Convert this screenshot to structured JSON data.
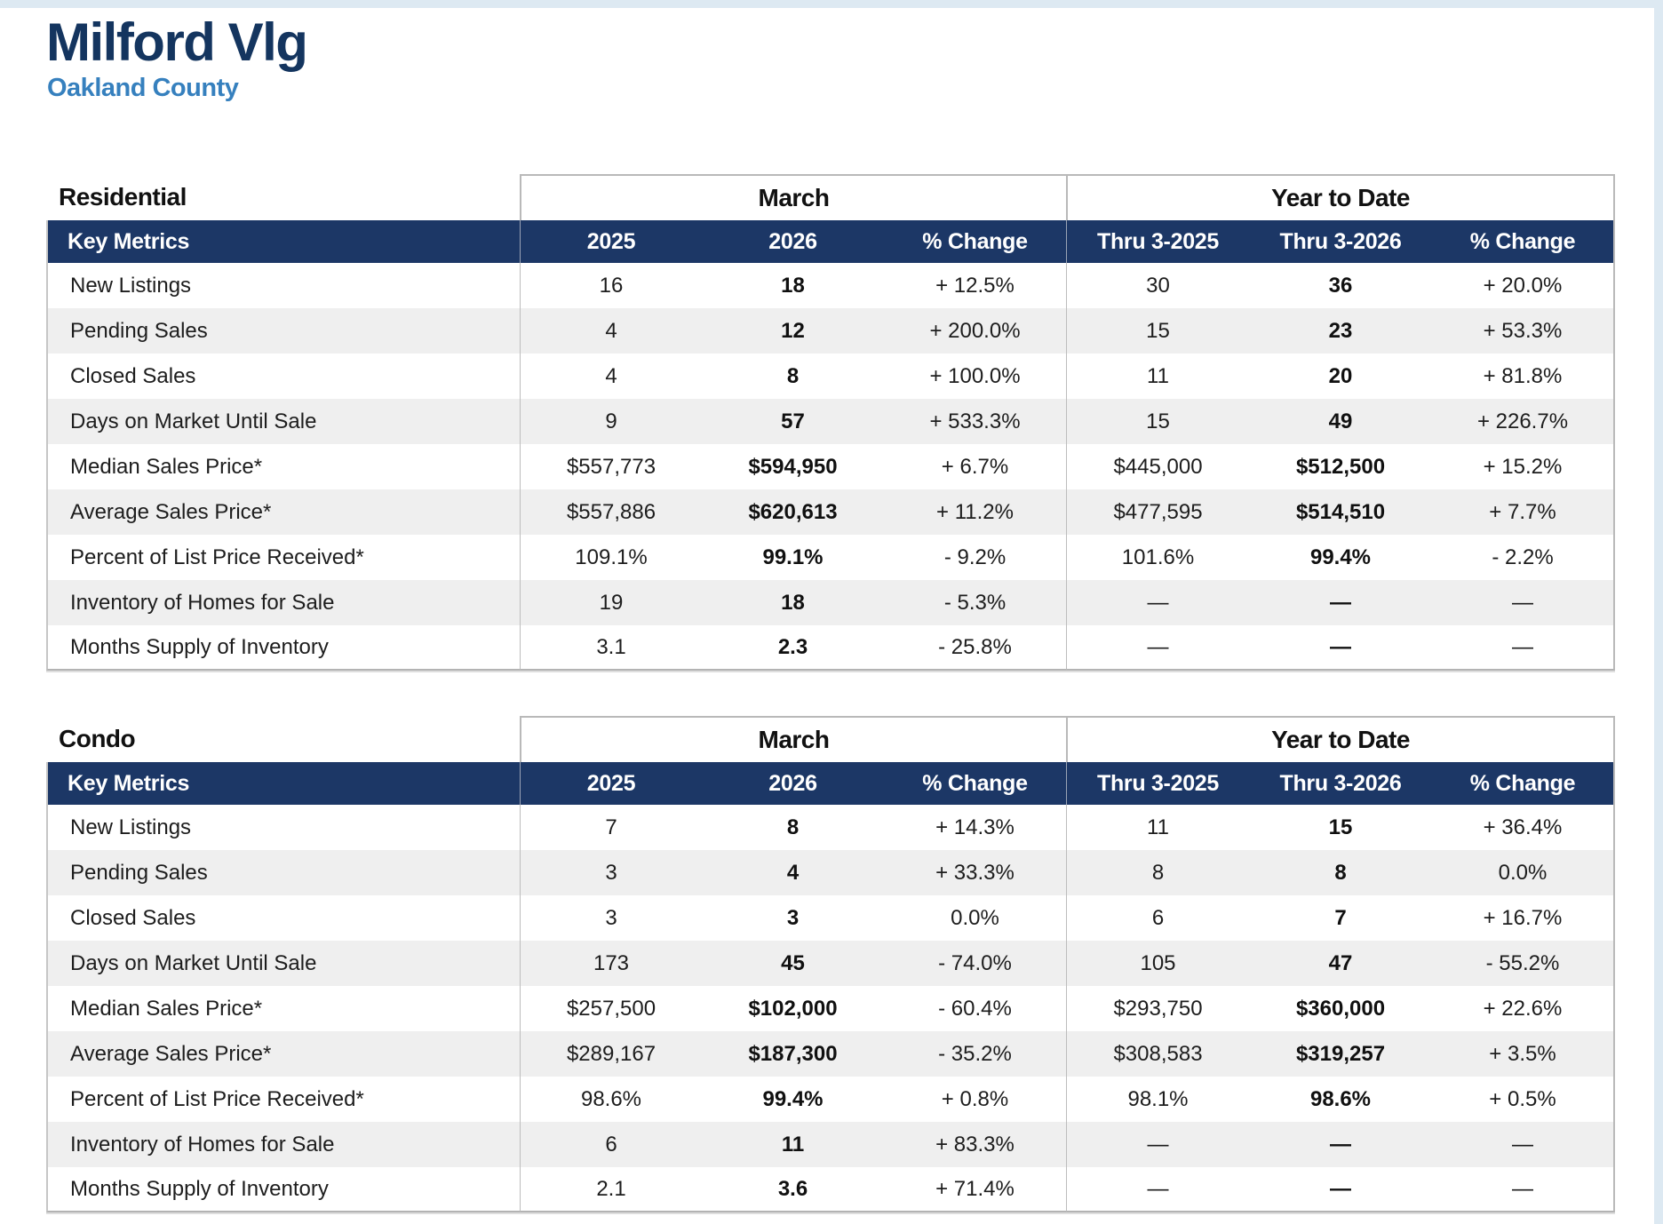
{
  "page": {
    "title": "Milford Vlg",
    "subtitle": "Oakland County"
  },
  "colors": {
    "title_navy": "#14355f",
    "subtitle_blue": "#3680be",
    "header_bar_navy": "#1c3766",
    "alt_row_gray": "#efefef",
    "edge_strip_blue": "#dde9f2",
    "border_gray": "#b9b9b9"
  },
  "tables": [
    {
      "section": "Residential",
      "group_headers": [
        "March",
        "Year to Date"
      ],
      "columns": [
        "Key Metrics",
        "2025",
        "2026",
        "% Change",
        "Thru 3-2025",
        "Thru 3-2026",
        "% Change"
      ],
      "rows": [
        {
          "metric": "New Listings",
          "values": [
            "16",
            "18",
            "+ 12.5%",
            "30",
            "36",
            "+ 20.0%"
          ]
        },
        {
          "metric": "Pending Sales",
          "values": [
            "4",
            "12",
            "+ 200.0%",
            "15",
            "23",
            "+ 53.3%"
          ]
        },
        {
          "metric": "Closed Sales",
          "values": [
            "4",
            "8",
            "+ 100.0%",
            "11",
            "20",
            "+ 81.8%"
          ]
        },
        {
          "metric": "Days on Market Until Sale",
          "values": [
            "9",
            "57",
            "+ 533.3%",
            "15",
            "49",
            "+ 226.7%"
          ]
        },
        {
          "metric": "Median Sales Price*",
          "values": [
            "$557,773",
            "$594,950",
            "+ 6.7%",
            "$445,000",
            "$512,500",
            "+ 15.2%"
          ]
        },
        {
          "metric": "Average Sales Price*",
          "values": [
            "$557,886",
            "$620,613",
            "+ 11.2%",
            "$477,595",
            "$514,510",
            "+ 7.7%"
          ]
        },
        {
          "metric": "Percent of List Price Received*",
          "values": [
            "109.1%",
            "99.1%",
            "- 9.2%",
            "101.6%",
            "99.4%",
            "- 2.2%"
          ]
        },
        {
          "metric": "Inventory of Homes for Sale",
          "values": [
            "19",
            "18",
            "- 5.3%",
            "—",
            "—",
            "—"
          ]
        },
        {
          "metric": "Months Supply of Inventory",
          "values": [
            "3.1",
            "2.3",
            "- 25.8%",
            "—",
            "—",
            "—"
          ]
        }
      ]
    },
    {
      "section": "Condo",
      "group_headers": [
        "March",
        "Year to Date"
      ],
      "columns": [
        "Key Metrics",
        "2025",
        "2026",
        "% Change",
        "Thru 3-2025",
        "Thru 3-2026",
        "% Change"
      ],
      "rows": [
        {
          "metric": "New Listings",
          "values": [
            "7",
            "8",
            "+ 14.3%",
            "11",
            "15",
            "+ 36.4%"
          ]
        },
        {
          "metric": "Pending Sales",
          "values": [
            "3",
            "4",
            "+ 33.3%",
            "8",
            "8",
            "0.0%"
          ]
        },
        {
          "metric": "Closed Sales",
          "values": [
            "3",
            "3",
            "0.0%",
            "6",
            "7",
            "+ 16.7%"
          ]
        },
        {
          "metric": "Days on Market Until Sale",
          "values": [
            "173",
            "45",
            "- 74.0%",
            "105",
            "47",
            "- 55.2%"
          ]
        },
        {
          "metric": "Median Sales Price*",
          "values": [
            "$257,500",
            "$102,000",
            "- 60.4%",
            "$293,750",
            "$360,000",
            "+ 22.6%"
          ]
        },
        {
          "metric": "Average Sales Price*",
          "values": [
            "$289,167",
            "$187,300",
            "- 35.2%",
            "$308,583",
            "$319,257",
            "+ 3.5%"
          ]
        },
        {
          "metric": "Percent of List Price Received*",
          "values": [
            "98.6%",
            "99.4%",
            "+ 0.8%",
            "98.1%",
            "98.6%",
            "+ 0.5%"
          ]
        },
        {
          "metric": "Inventory of Homes for Sale",
          "values": [
            "6",
            "11",
            "+ 83.3%",
            "—",
            "—",
            "—"
          ]
        },
        {
          "metric": "Months Supply of Inventory",
          "values": [
            "2.1",
            "3.6",
            "+ 71.4%",
            "—",
            "—",
            "—"
          ]
        }
      ]
    }
  ]
}
